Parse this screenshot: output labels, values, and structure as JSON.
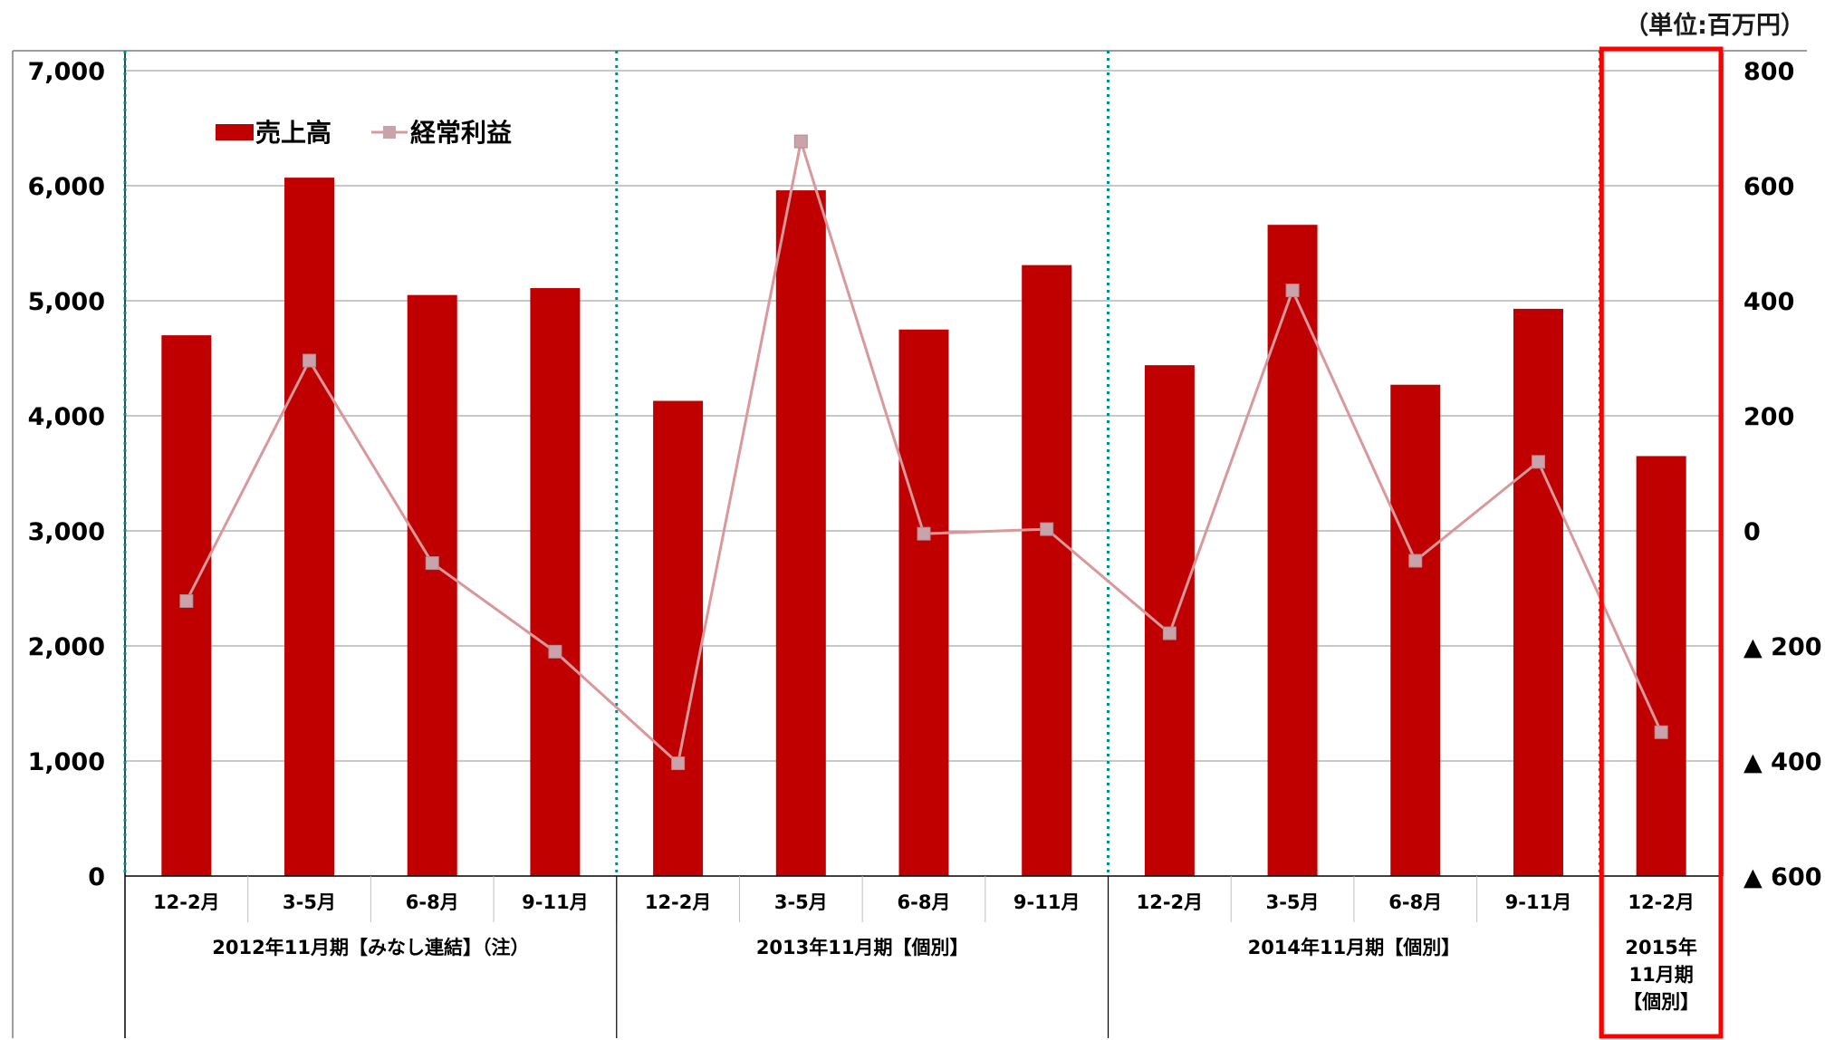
{
  "unit_label": "（単位:百万円）",
  "colors": {
    "bar": "#c00000",
    "line": "#d9989b",
    "marker": "#c9a3a9",
    "highlight": "#ff0000",
    "separator": "#008b8b",
    "grid": "#a6a6a6"
  },
  "chart_data": {
    "type": "bar",
    "title": "",
    "xlabel": "",
    "ylabel": "",
    "grid": true,
    "legend_position": "top-left",
    "categories": [
      "12-2月",
      "3-5月",
      "6-8月",
      "9-11月",
      "12-2月",
      "3-5月",
      "6-8月",
      "9-11月",
      "12-2月",
      "3-5月",
      "6-8月",
      "9-11月",
      "12-2月"
    ],
    "groups": [
      {
        "label": "2012年11月期【みなし連結】（注）",
        "count": 4
      },
      {
        "label": "2013年11月期【個別】",
        "count": 4
      },
      {
        "label": "2014年11月期【個別】",
        "count": 4
      },
      {
        "label_lines": [
          "2015年",
          "11月期",
          "【個別】"
        ],
        "count": 1
      }
    ],
    "ylim": [
      0,
      7000
    ],
    "y_ticks": [
      0,
      1000,
      2000,
      3000,
      4000,
      5000,
      6000,
      7000
    ],
    "y_tick_labels": [
      "0",
      "1,000",
      "2,000",
      "3,000",
      "4,000",
      "5,000",
      "6,000",
      "7,000"
    ],
    "y2lim": [
      -600,
      800
    ],
    "y2_ticks": [
      -600,
      -400,
      -200,
      0,
      200,
      400,
      600,
      800
    ],
    "y2_tick_labels": [
      "▲ 600",
      "▲ 400",
      "▲ 200",
      "0",
      "200",
      "400",
      "600",
      "800"
    ],
    "series": [
      {
        "name": "売上高",
        "type": "bar",
        "axis": "left",
        "values": [
          4700,
          6070,
          5050,
          5110,
          4130,
          5960,
          4750,
          5310,
          4440,
          5660,
          4270,
          4930,
          3650
        ]
      },
      {
        "name": "経常利益",
        "type": "line",
        "axis": "right",
        "values": [
          -122,
          296,
          -56,
          -210,
          -404,
          677,
          -5,
          3,
          -178,
          418,
          -52,
          120,
          -350
        ]
      }
    ],
    "highlight_index": 12
  }
}
